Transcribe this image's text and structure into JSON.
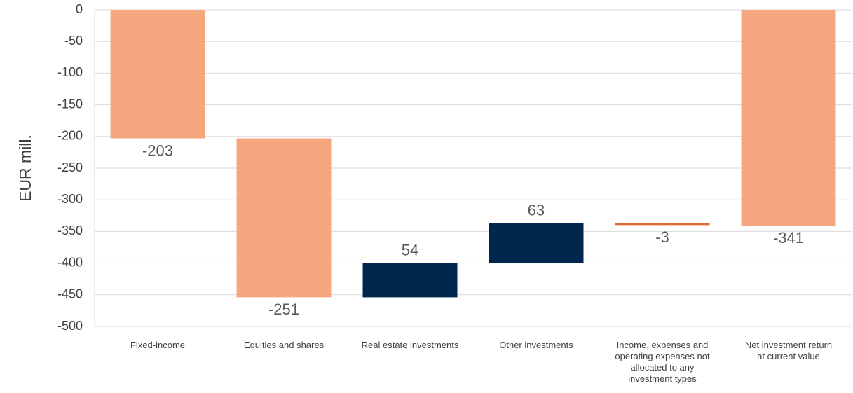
{
  "chart_data": {
    "type": "waterfall",
    "y_label": "EUR mill.",
    "categories": [
      "Fixed-income",
      "Equities and shares",
      "Real estate investments",
      "Other investments",
      "Income, expenses and operating expenses not allocated to any investment types",
      "Net investment return at current value"
    ],
    "values": [
      -203,
      -251,
      54,
      63,
      -3,
      -341
    ],
    "colors": [
      "#f5a880",
      "#f5a880",
      "#00264d",
      "#00264d",
      "#e06a2e",
      "#f5a880"
    ],
    "last_is_total": true,
    "ylim": [
      -500,
      0
    ],
    "yticks": [
      0,
      -50,
      -100,
      -150,
      -200,
      -250,
      -300,
      -350,
      -400,
      -450,
      -500
    ],
    "grid": true
  }
}
